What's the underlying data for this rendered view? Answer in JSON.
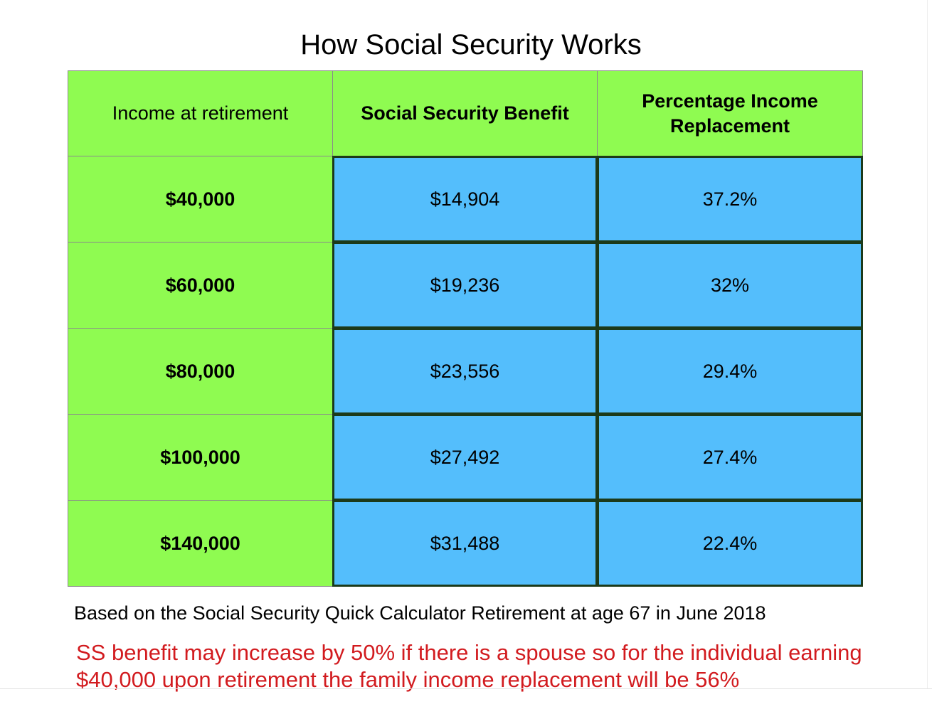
{
  "title": "How Social Security Works",
  "table": {
    "headers": [
      "Income at retirement",
      "Social Security Benefit",
      "Percentage Income Replacement"
    ],
    "rows": [
      {
        "income": "$40,000",
        "benefit": "$14,904",
        "percent": "37.2%"
      },
      {
        "income": "$60,000",
        "benefit": "$19,236",
        "percent": "32%"
      },
      {
        "income": "$80,000",
        "benefit": "$23,556",
        "percent": "29.4%"
      },
      {
        "income": "$100,000",
        "benefit": "$27,492",
        "percent": "27.4%"
      },
      {
        "income": "$140,000",
        "benefit": "$31,488",
        "percent": "22.4%"
      }
    ]
  },
  "footnote": "Based on the Social Security Quick Calculator Retirement at age 67 in June 2018",
  "note": {
    "line1": "SS benefit may increase by 50% if there is a spouse so for the individual earning",
    "line2": "$40,000 upon retirement the family income replacement will be 56%"
  },
  "colors": {
    "income_fill": "#8ffb51",
    "benefit_fill": "#54befc",
    "note_text": "#d21b1f"
  }
}
